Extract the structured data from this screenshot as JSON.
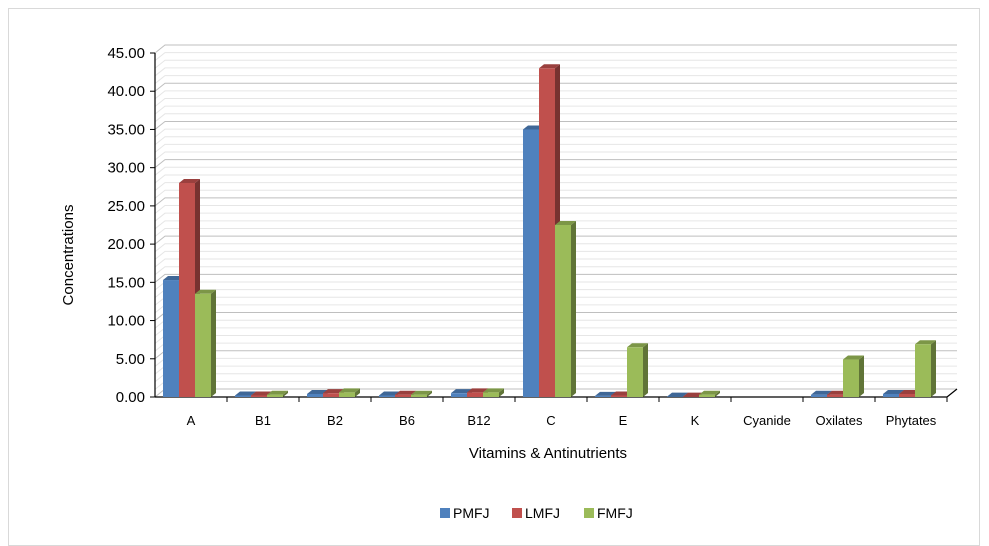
{
  "chart_data": {
    "type": "bar",
    "title": "",
    "xlabel": "Vitamins & Antinutrients",
    "ylabel": "Concentrations",
    "ylim": [
      0,
      45
    ],
    "ytick_labels": [
      "0.00",
      "5.00",
      "10.00",
      "15.00",
      "20.00",
      "25.00",
      "30.00",
      "35.00",
      "40.00",
      "45.00"
    ],
    "categories": [
      "A",
      "B1",
      "B2",
      "B6",
      "B12",
      "C",
      "E",
      "K",
      "Cyanide",
      "Oxilates",
      "Phytates"
    ],
    "series": [
      {
        "name": "PMFJ",
        "color": "#4f81bd",
        "values": [
          15.3,
          0.2,
          0.4,
          0.2,
          0.5,
          35.0,
          0.15,
          0.05,
          0.0,
          0.3,
          0.4
        ]
      },
      {
        "name": "LMFJ",
        "color": "#c0504d",
        "values": [
          28.0,
          0.2,
          0.5,
          0.3,
          0.6,
          43.0,
          0.2,
          0.05,
          0.0,
          0.3,
          0.4
        ]
      },
      {
        "name": "FMFJ",
        "color": "#9bbb59",
        "values": [
          13.5,
          0.3,
          0.6,
          0.3,
          0.6,
          22.5,
          6.5,
          0.3,
          0.0,
          4.9,
          6.9
        ]
      }
    ],
    "grid": true,
    "legend": "bottom"
  }
}
